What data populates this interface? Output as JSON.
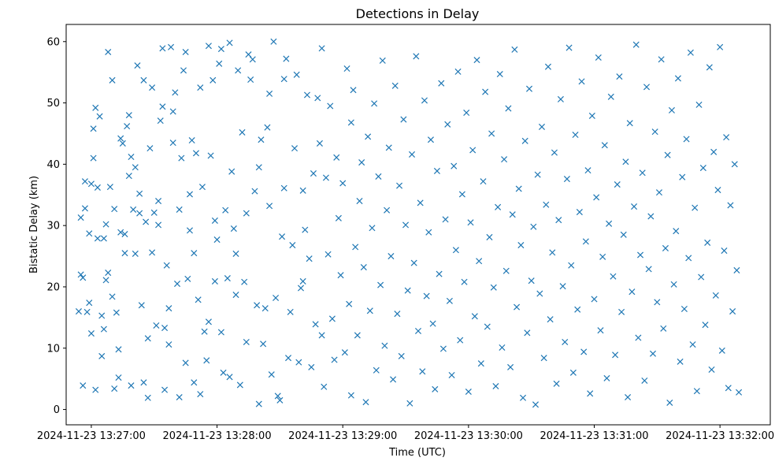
{
  "chart_data": {
    "type": "scatter",
    "title": "Detections in Delay",
    "xlabel": "Time (UTC)",
    "ylabel": "Bistatic Delay (km)",
    "marker": "x",
    "color": "#1f77b4",
    "grid": false,
    "legend": "none",
    "xlim": [
      "2024-11-23 13:26:48",
      "2024-11-23 13:32:24"
    ],
    "ylim": [
      -2.5,
      62.8
    ],
    "xticks": [
      "2024-11-23 13:27:00",
      "2024-11-23 13:28:00",
      "2024-11-23 13:29:00",
      "2024-11-23 13:30:00",
      "2024-11-23 13:31:00",
      "2024-11-23 13:32:00"
    ],
    "yticks": [
      0,
      10,
      20,
      30,
      40,
      50,
      60
    ],
    "points": [
      [
        "13:26:54",
        16.0
      ],
      [
        "13:26:55",
        22.0
      ],
      [
        "13:26:55",
        31.3
      ],
      [
        "13:26:56",
        21.5
      ],
      [
        "13:26:56",
        3.9
      ],
      [
        "13:26:57",
        32.8
      ],
      [
        "13:26:57",
        37.2
      ],
      [
        "13:26:58",
        15.9
      ],
      [
        "13:26:59",
        17.4
      ],
      [
        "13:26:59",
        28.7
      ],
      [
        "13:27:00",
        12.4
      ],
      [
        "13:27:00",
        36.8
      ],
      [
        "13:27:01",
        45.8
      ],
      [
        "13:27:01",
        41.0
      ],
      [
        "13:27:02",
        49.2
      ],
      [
        "13:27:02",
        3.2
      ],
      [
        "13:27:03",
        36.2
      ],
      [
        "13:27:03",
        27.9
      ],
      [
        "13:27:04",
        47.8
      ],
      [
        "13:27:05",
        15.3
      ],
      [
        "13:27:05",
        8.7
      ],
      [
        "13:27:06",
        13.1
      ],
      [
        "13:27:06",
        27.9
      ],
      [
        "13:27:07",
        21.1
      ],
      [
        "13:27:07",
        30.2
      ],
      [
        "13:27:08",
        22.3
      ],
      [
        "13:27:08",
        58.3
      ],
      [
        "13:27:09",
        36.3
      ],
      [
        "13:27:10",
        53.7
      ],
      [
        "13:27:10",
        18.4
      ],
      [
        "13:27:11",
        3.4
      ],
      [
        "13:27:11",
        32.7
      ],
      [
        "13:27:12",
        15.8
      ],
      [
        "13:27:13",
        9.8
      ],
      [
        "13:27:13",
        5.2
      ],
      [
        "13:27:14",
        28.9
      ],
      [
        "13:27:14",
        44.2
      ],
      [
        "13:27:15",
        43.4
      ],
      [
        "13:27:16",
        25.5
      ],
      [
        "13:27:16",
        28.6
      ],
      [
        "13:27:17",
        46.2
      ],
      [
        "13:27:18",
        38.1
      ],
      [
        "13:27:18",
        48.0
      ],
      [
        "13:27:19",
        41.2
      ],
      [
        "13:27:19",
        3.9
      ],
      [
        "13:27:20",
        32.6
      ],
      [
        "13:27:21",
        25.4
      ],
      [
        "13:27:21",
        39.5
      ],
      [
        "13:27:22",
        56.1
      ],
      [
        "13:27:23",
        32.0
      ],
      [
        "13:27:23",
        35.2
      ],
      [
        "13:27:24",
        17.0
      ],
      [
        "13:27:25",
        4.4
      ],
      [
        "13:27:25",
        53.7
      ],
      [
        "13:27:26",
        30.6
      ],
      [
        "13:27:27",
        1.9
      ],
      [
        "13:27:27",
        11.6
      ],
      [
        "13:27:28",
        42.6
      ],
      [
        "13:27:29",
        52.5
      ],
      [
        "13:27:29",
        25.6
      ],
      [
        "13:27:30",
        32.1
      ],
      [
        "13:27:31",
        13.7
      ],
      [
        "13:27:32",
        34.0
      ],
      [
        "13:27:32",
        30.1
      ],
      [
        "13:27:33",
        47.1
      ],
      [
        "13:27:34",
        49.4
      ],
      [
        "13:27:34",
        58.9
      ],
      [
        "13:27:35",
        3.2
      ],
      [
        "13:27:35",
        13.3
      ],
      [
        "13:27:36",
        23.5
      ],
      [
        "13:27:37",
        16.5
      ],
      [
        "13:27:37",
        10.6
      ],
      [
        "13:27:38",
        59.1
      ],
      [
        "13:27:39",
        48.6
      ],
      [
        "13:27:39",
        43.5
      ],
      [
        "13:27:40",
        51.7
      ],
      [
        "13:27:41",
        20.5
      ],
      [
        "13:27:42",
        32.6
      ],
      [
        "13:27:42",
        2.0
      ],
      [
        "13:27:43",
        41.0
      ],
      [
        "13:27:44",
        55.3
      ],
      [
        "13:27:45",
        58.3
      ],
      [
        "13:27:45",
        7.6
      ],
      [
        "13:27:46",
        21.3
      ],
      [
        "13:27:47",
        29.2
      ],
      [
        "13:27:47",
        35.1
      ],
      [
        "13:27:48",
        43.9
      ],
      [
        "13:27:49",
        25.5
      ],
      [
        "13:27:49",
        4.4
      ],
      [
        "13:27:50",
        41.8
      ],
      [
        "13:27:51",
        17.9
      ],
      [
        "13:27:52",
        52.5
      ],
      [
        "13:27:52",
        2.5
      ],
      [
        "13:27:53",
        36.3
      ],
      [
        "13:27:54",
        12.7
      ],
      [
        "13:27:55",
        8.0
      ],
      [
        "13:27:56",
        59.3
      ],
      [
        "13:27:56",
        14.3
      ],
      [
        "13:27:57",
        41.4
      ],
      [
        "13:27:58",
        53.7
      ],
      [
        "13:27:59",
        20.9
      ],
      [
        "13:27:59",
        30.8
      ],
      [
        "13:28:00",
        27.7
      ],
      [
        "13:28:01",
        56.4
      ],
      [
        "13:28:02",
        58.8
      ],
      [
        "13:28:02",
        12.6
      ],
      [
        "13:28:03",
        6.0
      ],
      [
        "13:28:04",
        32.5
      ],
      [
        "13:28:05",
        21.4
      ],
      [
        "13:28:06",
        59.8
      ],
      [
        "13:28:06",
        5.3
      ],
      [
        "13:28:07",
        38.8
      ],
      [
        "13:28:08",
        29.5
      ],
      [
        "13:28:09",
        18.7
      ],
      [
        "13:28:09",
        25.4
      ],
      [
        "13:28:10",
        55.3
      ],
      [
        "13:28:11",
        4.0
      ],
      [
        "13:28:12",
        45.2
      ],
      [
        "13:28:13",
        20.8
      ],
      [
        "13:28:14",
        11.0
      ],
      [
        "13:28:14",
        32.0
      ],
      [
        "13:28:15",
        57.9
      ],
      [
        "13:28:16",
        53.8
      ],
      [
        "13:28:17",
        57.1
      ],
      [
        "13:28:18",
        35.6
      ],
      [
        "13:28:19",
        17.0
      ],
      [
        "13:28:20",
        0.9
      ],
      [
        "13:28:20",
        39.5
      ],
      [
        "13:28:21",
        44.0
      ],
      [
        "13:28:22",
        10.7
      ],
      [
        "13:28:23",
        16.5
      ],
      [
        "13:28:24",
        46.0
      ],
      [
        "13:28:25",
        51.5
      ],
      [
        "13:28:25",
        33.2
      ],
      [
        "13:28:26",
        5.7
      ],
      [
        "13:28:27",
        60.0
      ],
      [
        "13:28:28",
        18.2
      ],
      [
        "13:28:29",
        2.2
      ],
      [
        "13:28:30",
        1.5
      ],
      [
        "13:28:31",
        28.2
      ],
      [
        "13:28:32",
        53.9
      ],
      [
        "13:28:32",
        36.1
      ],
      [
        "13:28:33",
        57.2
      ],
      [
        "13:28:34",
        8.4
      ],
      [
        "13:28:35",
        15.9
      ],
      [
        "13:28:36",
        26.8
      ],
      [
        "13:28:37",
        42.6
      ],
      [
        "13:28:38",
        54.6
      ],
      [
        "13:28:39",
        7.7
      ],
      [
        "13:28:40",
        19.8
      ],
      [
        "13:28:41",
        20.9
      ],
      [
        "13:28:41",
        35.7
      ],
      [
        "13:28:42",
        29.3
      ],
      [
        "13:28:43",
        51.3
      ],
      [
        "13:28:44",
        24.6
      ],
      [
        "13:28:45",
        6.9
      ],
      [
        "13:28:46",
        38.5
      ],
      [
        "13:28:47",
        13.9
      ],
      [
        "13:28:48",
        50.8
      ],
      [
        "13:28:49",
        43.4
      ],
      [
        "13:28:50",
        58.9
      ],
      [
        "13:28:50",
        12.1
      ],
      [
        "13:28:51",
        3.7
      ],
      [
        "13:28:52",
        37.8
      ],
      [
        "13:28:53",
        25.3
      ],
      [
        "13:28:54",
        49.5
      ],
      [
        "13:28:55",
        14.8
      ],
      [
        "13:28:56",
        8.1
      ],
      [
        "13:28:57",
        41.1
      ],
      [
        "13:28:58",
        31.2
      ],
      [
        "13:28:59",
        21.9
      ],
      [
        "13:29:00",
        36.9
      ],
      [
        "13:29:01",
        9.3
      ],
      [
        "13:29:02",
        55.6
      ],
      [
        "13:29:03",
        17.2
      ],
      [
        "13:29:04",
        46.8
      ],
      [
        "13:29:04",
        2.3
      ],
      [
        "13:29:05",
        52.1
      ],
      [
        "13:29:06",
        26.5
      ],
      [
        "13:29:07",
        12.1
      ],
      [
        "13:29:08",
        34.0
      ],
      [
        "13:29:09",
        40.3
      ],
      [
        "13:29:10",
        23.2
      ],
      [
        "13:29:11",
        1.2
      ],
      [
        "13:29:12",
        44.5
      ],
      [
        "13:29:13",
        16.1
      ],
      [
        "13:29:14",
        29.6
      ],
      [
        "13:29:15",
        49.9
      ],
      [
        "13:29:16",
        6.4
      ],
      [
        "13:29:17",
        38.0
      ],
      [
        "13:29:18",
        20.3
      ],
      [
        "13:29:19",
        56.9
      ],
      [
        "13:29:20",
        10.4
      ],
      [
        "13:29:21",
        32.5
      ],
      [
        "13:29:22",
        42.7
      ],
      [
        "13:29:23",
        25.0
      ],
      [
        "13:29:24",
        4.9
      ],
      [
        "13:29:25",
        52.8
      ],
      [
        "13:29:26",
        15.6
      ],
      [
        "13:29:27",
        36.5
      ],
      [
        "13:29:28",
        8.7
      ],
      [
        "13:29:29",
        47.3
      ],
      [
        "13:29:30",
        30.1
      ],
      [
        "13:29:31",
        19.4
      ],
      [
        "13:29:32",
        1.0
      ],
      [
        "13:29:33",
        41.6
      ],
      [
        "13:29:34",
        23.9
      ],
      [
        "13:29:35",
        57.6
      ],
      [
        "13:29:36",
        12.8
      ],
      [
        "13:29:37",
        33.7
      ],
      [
        "13:29:38",
        6.2
      ],
      [
        "13:29:39",
        50.4
      ],
      [
        "13:29:40",
        18.5
      ],
      [
        "13:29:41",
        28.9
      ],
      [
        "13:29:42",
        44.0
      ],
      [
        "13:29:43",
        14.0
      ],
      [
        "13:29:44",
        3.3
      ],
      [
        "13:29:45",
        38.9
      ],
      [
        "13:29:46",
        22.1
      ],
      [
        "13:29:47",
        53.2
      ],
      [
        "13:29:48",
        9.9
      ],
      [
        "13:29:49",
        31.0
      ],
      [
        "13:29:50",
        46.5
      ],
      [
        "13:29:51",
        17.7
      ],
      [
        "13:29:52",
        5.6
      ],
      [
        "13:29:53",
        39.7
      ],
      [
        "13:29:54",
        26.0
      ],
      [
        "13:29:55",
        55.1
      ],
      [
        "13:29:56",
        11.3
      ],
      [
        "13:29:57",
        35.1
      ],
      [
        "13:29:58",
        20.8
      ],
      [
        "13:29:59",
        48.4
      ],
      [
        "13:30:00",
        2.9
      ],
      [
        "13:30:01",
        30.5
      ],
      [
        "13:30:02",
        42.3
      ],
      [
        "13:30:03",
        15.2
      ],
      [
        "13:30:04",
        57.0
      ],
      [
        "13:30:05",
        24.2
      ],
      [
        "13:30:06",
        7.5
      ],
      [
        "13:30:07",
        37.2
      ],
      [
        "13:30:08",
        51.8
      ],
      [
        "13:30:09",
        13.5
      ],
      [
        "13:30:10",
        28.1
      ],
      [
        "13:30:11",
        45.0
      ],
      [
        "13:30:12",
        19.9
      ],
      [
        "13:30:13",
        3.8
      ],
      [
        "13:30:14",
        33.0
      ],
      [
        "13:30:15",
        54.7
      ],
      [
        "13:30:16",
        10.1
      ],
      [
        "13:30:17",
        40.8
      ],
      [
        "13:30:18",
        22.6
      ],
      [
        "13:30:19",
        49.1
      ],
      [
        "13:30:20",
        6.9
      ],
      [
        "13:30:21",
        31.8
      ],
      [
        "13:30:22",
        58.7
      ],
      [
        "13:30:23",
        16.7
      ],
      [
        "13:30:24",
        36.0
      ],
      [
        "13:30:25",
        26.8
      ],
      [
        "13:30:26",
        1.9
      ],
      [
        "13:30:27",
        43.8
      ],
      [
        "13:30:28",
        12.5
      ],
      [
        "13:30:29",
        52.3
      ],
      [
        "13:30:30",
        21.0
      ],
      [
        "13:30:31",
        29.8
      ],
      [
        "13:30:32",
        0.8
      ],
      [
        "13:30:33",
        38.3
      ],
      [
        "13:30:34",
        18.9
      ],
      [
        "13:30:35",
        46.1
      ],
      [
        "13:30:36",
        8.4
      ],
      [
        "13:30:37",
        33.4
      ],
      [
        "13:30:38",
        55.9
      ],
      [
        "13:30:39",
        14.7
      ],
      [
        "13:30:40",
        25.6
      ],
      [
        "13:30:41",
        41.9
      ],
      [
        "13:30:42",
        4.2
      ],
      [
        "13:30:43",
        30.9
      ],
      [
        "13:30:44",
        50.6
      ],
      [
        "13:30:45",
        20.1
      ],
      [
        "13:30:46",
        11.0
      ],
      [
        "13:30:47",
        37.6
      ],
      [
        "13:30:48",
        59.0
      ],
      [
        "13:30:49",
        23.5
      ],
      [
        "13:30:50",
        6.0
      ],
      [
        "13:30:51",
        44.8
      ],
      [
        "13:30:52",
        16.3
      ],
      [
        "13:30:53",
        32.2
      ],
      [
        "13:30:54",
        53.5
      ],
      [
        "13:30:55",
        9.4
      ],
      [
        "13:30:56",
        27.4
      ],
      [
        "13:30:57",
        39.0
      ],
      [
        "13:30:58",
        2.6
      ],
      [
        "13:30:59",
        47.9
      ],
      [
        "13:31:00",
        18.0
      ],
      [
        "13:31:01",
        34.6
      ],
      [
        "13:31:02",
        57.4
      ],
      [
        "13:31:03",
        12.9
      ],
      [
        "13:31:04",
        24.9
      ],
      [
        "13:31:05",
        43.1
      ],
      [
        "13:31:06",
        5.1
      ],
      [
        "13:31:07",
        30.3
      ],
      [
        "13:31:08",
        51.0
      ],
      [
        "13:31:09",
        21.7
      ],
      [
        "13:31:10",
        8.9
      ],
      [
        "13:31:11",
        36.7
      ],
      [
        "13:31:12",
        54.3
      ],
      [
        "13:31:13",
        15.9
      ],
      [
        "13:31:14",
        28.5
      ],
      [
        "13:31:15",
        40.4
      ],
      [
        "13:31:16",
        2.0
      ],
      [
        "13:31:17",
        46.7
      ],
      [
        "13:31:18",
        19.2
      ],
      [
        "13:31:19",
        33.1
      ],
      [
        "13:31:20",
        59.5
      ],
      [
        "13:31:21",
        11.7
      ],
      [
        "13:31:22",
        25.2
      ],
      [
        "13:31:23",
        38.6
      ],
      [
        "13:31:24",
        4.7
      ],
      [
        "13:31:25",
        52.6
      ],
      [
        "13:31:26",
        22.9
      ],
      [
        "13:31:27",
        31.5
      ],
      [
        "13:31:28",
        9.1
      ],
      [
        "13:31:29",
        45.3
      ],
      [
        "13:31:30",
        17.5
      ],
      [
        "13:31:31",
        35.4
      ],
      [
        "13:31:32",
        57.1
      ],
      [
        "13:31:33",
        13.2
      ],
      [
        "13:31:34",
        26.3
      ],
      [
        "13:31:35",
        41.5
      ],
      [
        "13:31:36",
        1.1
      ],
      [
        "13:31:37",
        48.8
      ],
      [
        "13:31:38",
        20.4
      ],
      [
        "13:31:39",
        29.1
      ],
      [
        "13:31:40",
        54.0
      ],
      [
        "13:31:41",
        7.8
      ],
      [
        "13:31:42",
        37.9
      ],
      [
        "13:31:43",
        16.4
      ],
      [
        "13:31:44",
        44.1
      ],
      [
        "13:31:45",
        24.7
      ],
      [
        "13:31:46",
        58.2
      ],
      [
        "13:31:47",
        10.6
      ],
      [
        "13:31:48",
        32.9
      ],
      [
        "13:31:49",
        3.0
      ],
      [
        "13:31:50",
        49.7
      ],
      [
        "13:31:51",
        21.6
      ],
      [
        "13:31:52",
        39.4
      ],
      [
        "13:31:53",
        13.8
      ],
      [
        "13:31:54",
        27.2
      ],
      [
        "13:31:55",
        55.8
      ],
      [
        "13:31:56",
        6.5
      ],
      [
        "13:31:57",
        42.0
      ],
      [
        "13:31:58",
        18.6
      ],
      [
        "13:31:59",
        35.8
      ],
      [
        "13:32:00",
        59.1
      ],
      [
        "13:32:01",
        9.6
      ],
      [
        "13:32:02",
        25.9
      ],
      [
        "13:32:03",
        44.4
      ],
      [
        "13:32:04",
        3.5
      ],
      [
        "13:32:05",
        33.3
      ],
      [
        "13:32:06",
        16.0
      ],
      [
        "13:32:07",
        40.0
      ],
      [
        "13:32:08",
        22.7
      ],
      [
        "13:32:09",
        2.8
      ]
    ]
  }
}
